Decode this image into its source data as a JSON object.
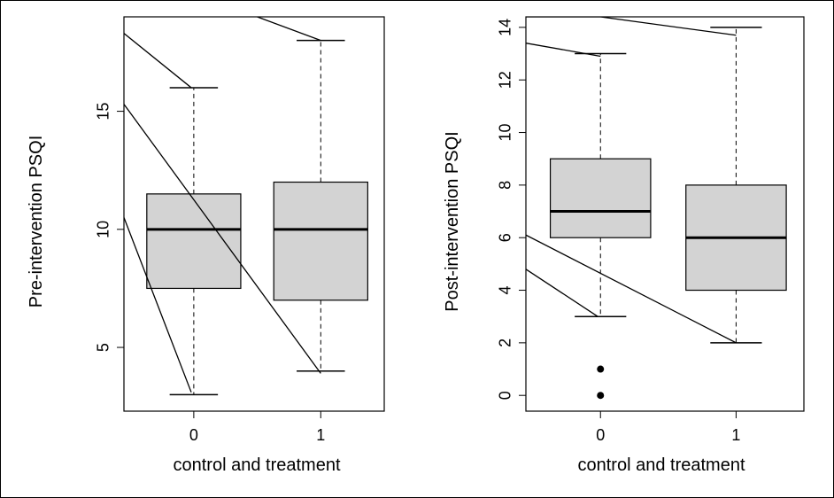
{
  "colors": {
    "box_fill": "#d3d3d3",
    "stroke": "#000000",
    "background": "#ffffff"
  },
  "chart_data": [
    {
      "type": "box",
      "xlabel": "control and treatment",
      "ylabel": "Pre-intervention PSQI",
      "categories": [
        "0",
        "1"
      ],
      "ylim": [
        2.3,
        19.0
      ],
      "yticks": [
        5,
        10,
        15
      ],
      "boxes": [
        {
          "category": "0",
          "whisker_low": 3,
          "q1": 7.5,
          "median": 10,
          "q3": 11.5,
          "whisker_high": 16,
          "outliers": []
        },
        {
          "category": "1",
          "whisker_low": 4,
          "q1": 7,
          "median": 10,
          "q3": 12,
          "whisker_high": 18,
          "outliers": []
        }
      ],
      "overlay_lines": [
        {
          "x": [
            -0.55,
            -0.02
          ],
          "y": [
            18.3,
            16.0
          ]
        },
        {
          "x": [
            -0.55,
            1.0
          ],
          "y": [
            15.3,
            3.9
          ]
        },
        {
          "x": [
            -0.55,
            -0.02
          ],
          "y": [
            10.5,
            3.1
          ]
        },
        {
          "x": [
            0.5,
            1.0
          ],
          "y": [
            19.0,
            18.0
          ]
        }
      ]
    },
    {
      "type": "box",
      "xlabel": "control and treatment",
      "ylabel": "Post-intervention PSQI",
      "categories": [
        "0",
        "1"
      ],
      "ylim": [
        -0.6,
        14.4
      ],
      "yticks": [
        0,
        2,
        4,
        6,
        8,
        10,
        12,
        14
      ],
      "boxes": [
        {
          "category": "0",
          "whisker_low": 3,
          "q1": 6,
          "median": 7,
          "q3": 9,
          "whisker_high": 13,
          "outliers": [
            1,
            0
          ]
        },
        {
          "category": "1",
          "whisker_low": 2,
          "q1": 4,
          "median": 6,
          "q3": 8,
          "whisker_high": 14,
          "outliers": []
        }
      ],
      "overlay_lines": [
        {
          "x": [
            -0.55,
            0.0
          ],
          "y": [
            14.4,
            14.4
          ]
        },
        {
          "x": [
            0.0,
            1.0
          ],
          "y": [
            14.4,
            13.7
          ]
        },
        {
          "x": [
            -0.55,
            0.0
          ],
          "y": [
            13.4,
            12.9
          ]
        },
        {
          "x": [
            -0.55,
            1.0
          ],
          "y": [
            6.1,
            2.0
          ]
        },
        {
          "x": [
            -0.55,
            -0.02
          ],
          "y": [
            4.8,
            3.0
          ]
        }
      ]
    }
  ]
}
